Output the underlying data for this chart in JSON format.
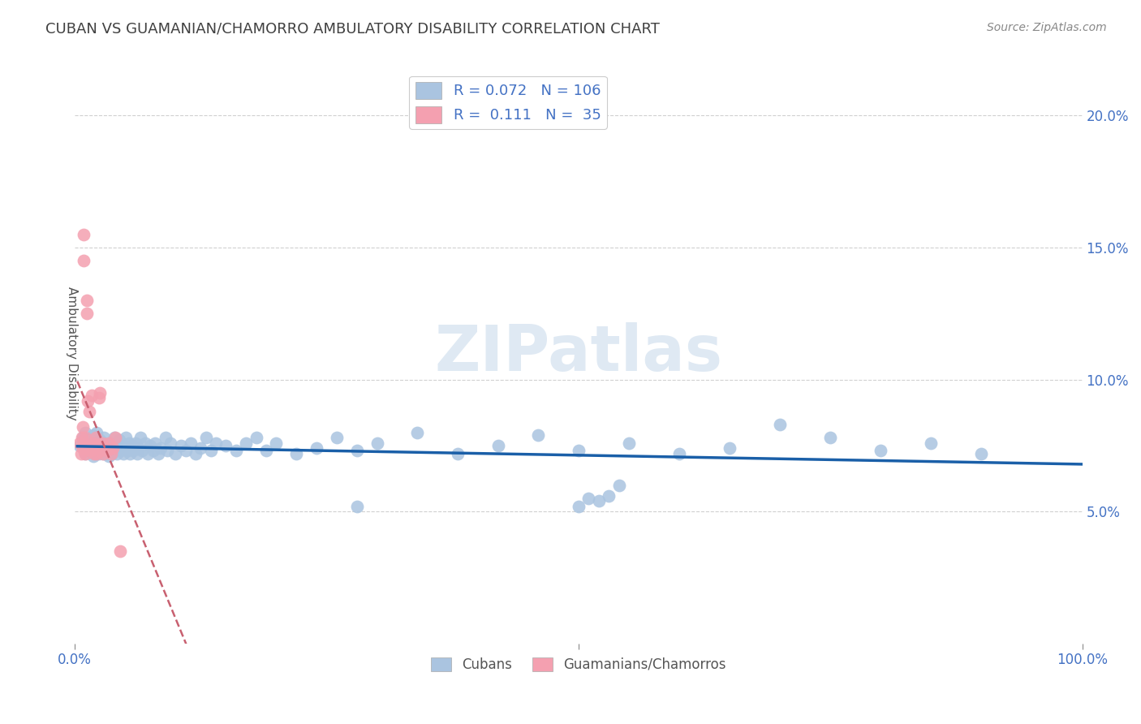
{
  "title": "CUBAN VS GUAMANIAN/CHAMORRO AMBULATORY DISABILITY CORRELATION CHART",
  "source": "Source: ZipAtlas.com",
  "ylabel": "Ambulatory Disability",
  "xlim": [
    0.0,
    1.0
  ],
  "ylim": [
    0.0,
    0.22
  ],
  "yticks": [
    0.05,
    0.1,
    0.15,
    0.2
  ],
  "ytick_labels": [
    "5.0%",
    "10.0%",
    "15.0%",
    "20.0%"
  ],
  "xticks": [
    0.0,
    0.5,
    1.0
  ],
  "xtick_labels": [
    "0.0%",
    "",
    "100.0%"
  ],
  "r_cuban": 0.072,
  "n_cuban": 106,
  "r_guam": 0.111,
  "n_guam": 35,
  "cuban_color": "#aac4e0",
  "guam_color": "#f4a0b0",
  "cuban_line_color": "#1a5fa8",
  "guam_line_color": "#c86070",
  "background_color": "#ffffff",
  "grid_color": "#d0d0d0",
  "title_color": "#404040",
  "label_color": "#4472c4",
  "watermark": "ZIPatlas",
  "cuban_points_x": [
    0.005,
    0.008,
    0.01,
    0.01,
    0.012,
    0.013,
    0.015,
    0.016,
    0.017,
    0.018,
    0.018,
    0.019,
    0.02,
    0.02,
    0.021,
    0.021,
    0.022,
    0.023,
    0.024,
    0.025,
    0.025,
    0.026,
    0.027,
    0.028,
    0.028,
    0.029,
    0.03,
    0.03,
    0.031,
    0.032,
    0.033,
    0.034,
    0.035,
    0.036,
    0.037,
    0.038,
    0.039,
    0.04,
    0.041,
    0.042,
    0.043,
    0.044,
    0.046,
    0.047,
    0.048,
    0.05,
    0.051,
    0.052,
    0.054,
    0.055,
    0.057,
    0.058,
    0.06,
    0.062,
    0.063,
    0.065,
    0.067,
    0.07,
    0.072,
    0.075,
    0.078,
    0.08,
    0.083,
    0.085,
    0.09,
    0.092,
    0.095,
    0.1,
    0.105,
    0.11,
    0.115,
    0.12,
    0.125,
    0.13,
    0.135,
    0.14,
    0.15,
    0.16,
    0.17,
    0.18,
    0.19,
    0.2,
    0.22,
    0.24,
    0.26,
    0.28,
    0.3,
    0.34,
    0.38,
    0.42,
    0.46,
    0.5,
    0.55,
    0.6,
    0.65,
    0.7,
    0.75,
    0.8,
    0.85,
    0.9,
    0.28,
    0.5,
    0.51,
    0.52,
    0.53,
    0.54
  ],
  "cuban_points_y": [
    0.075,
    0.078,
    0.072,
    0.08,
    0.074,
    0.076,
    0.073,
    0.077,
    0.075,
    0.071,
    0.079,
    0.074,
    0.072,
    0.078,
    0.076,
    0.073,
    0.08,
    0.074,
    0.072,
    0.075,
    0.077,
    0.073,
    0.076,
    0.072,
    0.074,
    0.078,
    0.073,
    0.076,
    0.072,
    0.075,
    0.074,
    0.071,
    0.073,
    0.076,
    0.072,
    0.075,
    0.078,
    0.073,
    0.076,
    0.072,
    0.074,
    0.077,
    0.073,
    0.075,
    0.072,
    0.074,
    0.078,
    0.073,
    0.076,
    0.072,
    0.075,
    0.073,
    0.076,
    0.072,
    0.074,
    0.078,
    0.073,
    0.076,
    0.072,
    0.075,
    0.073,
    0.076,
    0.072,
    0.074,
    0.078,
    0.073,
    0.076,
    0.072,
    0.075,
    0.073,
    0.076,
    0.072,
    0.074,
    0.078,
    0.073,
    0.076,
    0.075,
    0.073,
    0.076,
    0.078,
    0.073,
    0.076,
    0.072,
    0.074,
    0.078,
    0.073,
    0.076,
    0.08,
    0.072,
    0.075,
    0.079,
    0.073,
    0.076,
    0.072,
    0.074,
    0.083,
    0.078,
    0.073,
    0.076,
    0.072,
    0.052,
    0.052,
    0.055,
    0.054,
    0.056,
    0.06
  ],
  "guam_points_x": [
    0.005,
    0.006,
    0.007,
    0.008,
    0.008,
    0.009,
    0.009,
    0.01,
    0.01,
    0.011,
    0.012,
    0.012,
    0.013,
    0.014,
    0.015,
    0.016,
    0.017,
    0.018,
    0.019,
    0.02,
    0.021,
    0.022,
    0.023,
    0.024,
    0.025,
    0.026,
    0.027,
    0.028,
    0.03,
    0.032,
    0.034,
    0.036,
    0.038,
    0.04,
    0.045
  ],
  "guam_points_y": [
    0.076,
    0.072,
    0.078,
    0.074,
    0.082,
    0.155,
    0.145,
    0.072,
    0.078,
    0.074,
    0.13,
    0.125,
    0.092,
    0.088,
    0.073,
    0.075,
    0.094,
    0.076,
    0.072,
    0.074,
    0.078,
    0.072,
    0.075,
    0.093,
    0.095,
    0.073,
    0.076,
    0.072,
    0.074,
    0.073,
    0.076,
    0.072,
    0.074,
    0.078,
    0.035
  ]
}
